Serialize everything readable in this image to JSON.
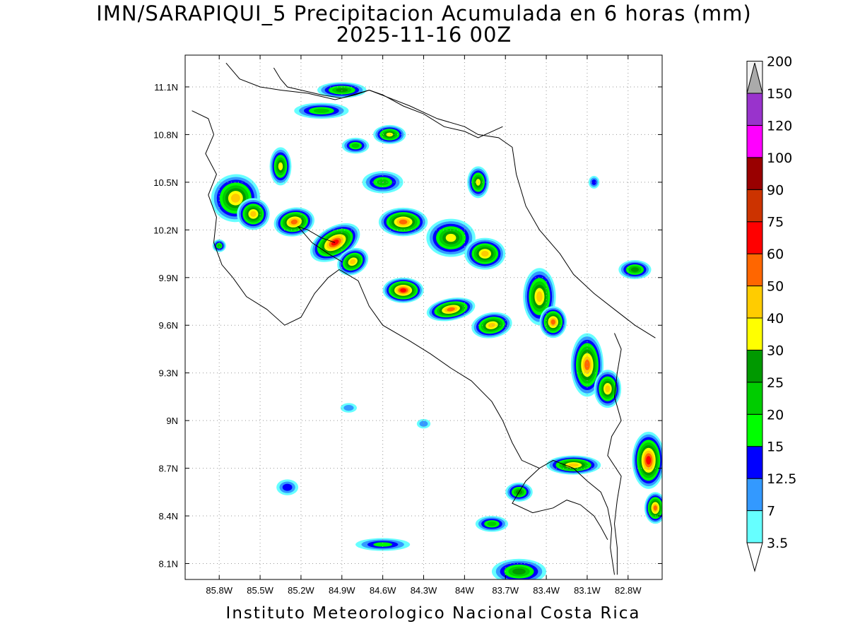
{
  "title": {
    "line1": "IMN/SARAPIQUI_5 Precipitacion Acumulada en 6 horas (mm)",
    "line2": "2025-11-16 00Z"
  },
  "credit": "Instituto Meteorologico Nacional Costa Rica",
  "map": {
    "lon_range": [
      -86.05,
      -82.55
    ],
    "lat_range": [
      8.0,
      11.3
    ],
    "lon_ticks": [
      {
        "value": -85.8,
        "label": "85.8W"
      },
      {
        "value": -85.5,
        "label": "85.5W"
      },
      {
        "value": -85.2,
        "label": "85.2W"
      },
      {
        "value": -84.9,
        "label": "84.9W"
      },
      {
        "value": -84.6,
        "label": "84.6W"
      },
      {
        "value": -84.3,
        "label": "84.3W"
      },
      {
        "value": -84.0,
        "label": "84W"
      },
      {
        "value": -83.7,
        "label": "83.7W"
      },
      {
        "value": -83.4,
        "label": "83.4W"
      },
      {
        "value": -83.1,
        "label": "83.1W"
      },
      {
        "value": -82.8,
        "label": "82.8W"
      }
    ],
    "lat_ticks": [
      {
        "value": 11.1,
        "label": "11.1N"
      },
      {
        "value": 10.8,
        "label": "10.8N"
      },
      {
        "value": 10.5,
        "label": "10.5N"
      },
      {
        "value": 10.2,
        "label": "10.2N"
      },
      {
        "value": 9.9,
        "label": "9.9N"
      },
      {
        "value": 9.6,
        "label": "9.6N"
      },
      {
        "value": 9.3,
        "label": "9.3N"
      },
      {
        "value": 9.0,
        "label": "9N"
      },
      {
        "value": 8.7,
        "label": "8.7N"
      },
      {
        "value": 8.4,
        "label": "8.4N"
      },
      {
        "value": 8.1,
        "label": "8.1N"
      }
    ],
    "grid": true,
    "coastline": [
      [
        [
          -85.4,
          11.22
        ],
        [
          -85.35,
          11.15
        ],
        [
          -85.3,
          11.1
        ],
        [
          -85.2,
          11.08
        ],
        [
          -85.05,
          11.05
        ],
        [
          -84.9,
          11.03
        ],
        [
          -84.78,
          11.06
        ],
        [
          -84.7,
          11.08
        ],
        [
          -84.55,
          11.03
        ],
        [
          -84.4,
          10.98
        ],
        [
          -84.2,
          10.9
        ],
        [
          -84.0,
          10.85
        ],
        [
          -83.9,
          10.8
        ],
        [
          -83.75,
          10.78
        ],
        [
          -83.65,
          10.72
        ],
        [
          -83.62,
          10.55
        ],
        [
          -83.55,
          10.35
        ],
        [
          -83.45,
          10.2
        ],
        [
          -83.3,
          10.05
        ],
        [
          -83.2,
          9.92
        ],
        [
          -83.05,
          9.8
        ],
        [
          -82.9,
          9.7
        ],
        [
          -82.75,
          9.6
        ],
        [
          -82.6,
          9.52
        ]
      ],
      [
        [
          -86.0,
          10.95
        ],
        [
          -85.88,
          10.9
        ],
        [
          -85.84,
          10.8
        ],
        [
          -85.9,
          10.68
        ],
        [
          -85.82,
          10.55
        ],
        [
          -85.88,
          10.42
        ],
        [
          -85.82,
          10.28
        ],
        [
          -85.84,
          10.12
        ],
        [
          -85.78,
          9.98
        ],
        [
          -85.7,
          9.9
        ],
        [
          -85.6,
          9.78
        ],
        [
          -85.45,
          9.7
        ],
        [
          -85.32,
          9.6
        ],
        [
          -85.2,
          9.65
        ],
        [
          -85.1,
          9.8
        ],
        [
          -85.0,
          9.9
        ],
        [
          -84.92,
          9.95
        ],
        [
          -84.78,
          9.88
        ],
        [
          -84.7,
          9.72
        ],
        [
          -84.6,
          9.6
        ],
        [
          -84.4,
          9.5
        ],
        [
          -84.25,
          9.42
        ],
        [
          -84.1,
          9.33
        ],
        [
          -83.95,
          9.25
        ],
        [
          -83.8,
          9.12
        ],
        [
          -83.72,
          9.0
        ],
        [
          -83.65,
          8.86
        ],
        [
          -83.58,
          8.75
        ],
        [
          -83.45,
          8.7
        ],
        [
          -83.35,
          8.75
        ],
        [
          -83.2,
          8.7
        ],
        [
          -83.1,
          8.62
        ],
        [
          -83.0,
          8.55
        ],
        [
          -82.95,
          8.45
        ],
        [
          -82.92,
          8.32
        ],
        [
          -82.93,
          8.2
        ],
        [
          -82.9,
          8.03
        ]
      ],
      [
        [
          -83.45,
          8.7
        ],
        [
          -83.55,
          8.62
        ],
        [
          -83.6,
          8.55
        ],
        [
          -83.65,
          8.48
        ],
        [
          -83.5,
          8.42
        ],
        [
          -83.35,
          8.45
        ],
        [
          -83.25,
          8.5
        ],
        [
          -83.15,
          8.47
        ],
        [
          -83.05,
          8.4
        ],
        [
          -83.0,
          8.33
        ],
        [
          -82.95,
          8.25
        ]
      ],
      [
        [
          -84.95,
          10.12
        ],
        [
          -85.05,
          10.15
        ],
        [
          -85.15,
          10.2
        ],
        [
          -85.22,
          10.22
        ],
        [
          -85.12,
          10.12
        ],
        [
          -85.0,
          10.05
        ],
        [
          -84.9,
          10.0
        ]
      ]
    ],
    "borders": [
      [
        [
          -85.75,
          11.25
        ],
        [
          -85.65,
          11.15
        ],
        [
          -85.5,
          11.1
        ],
        [
          -85.35,
          11.08
        ],
        [
          -85.15,
          11.06
        ],
        [
          -84.95,
          11.02
        ],
        [
          -84.8,
          11.05
        ],
        [
          -84.7,
          11.08
        ],
        [
          -84.6,
          11.05
        ],
        [
          -84.45,
          10.98
        ],
        [
          -84.3,
          10.93
        ],
        [
          -84.15,
          10.85
        ],
        [
          -84.0,
          10.82
        ],
        [
          -83.9,
          10.78
        ],
        [
          -83.72,
          10.85
        ]
      ],
      [
        [
          -82.9,
          9.55
        ],
        [
          -82.85,
          9.45
        ],
        [
          -82.88,
          9.3
        ],
        [
          -82.9,
          9.15
        ],
        [
          -82.85,
          9.0
        ],
        [
          -82.92,
          8.9
        ],
        [
          -82.95,
          8.78
        ],
        [
          -82.85,
          8.65
        ],
        [
          -82.88,
          8.5
        ],
        [
          -82.9,
          8.35
        ],
        [
          -82.88,
          8.2
        ],
        [
          -82.88,
          8.03
        ]
      ]
    ]
  },
  "precip_cells": [
    {
      "lon": -85.68,
      "lat": 10.4,
      "rx": 0.18,
      "ry": 0.15,
      "max": 45,
      "rot": -20
    },
    {
      "lon": -85.55,
      "lat": 10.3,
      "rx": 0.12,
      "ry": 0.1,
      "max": 40,
      "rot": 0
    },
    {
      "lon": -85.25,
      "lat": 10.25,
      "rx": 0.15,
      "ry": 0.09,
      "max": 55,
      "rot": -10
    },
    {
      "lon": -84.95,
      "lat": 10.12,
      "rx": 0.2,
      "ry": 0.1,
      "max": 60,
      "rot": -30
    },
    {
      "lon": -84.82,
      "lat": 10.0,
      "rx": 0.12,
      "ry": 0.08,
      "max": 45,
      "rot": -30
    },
    {
      "lon": -84.45,
      "lat": 10.25,
      "rx": 0.18,
      "ry": 0.09,
      "max": 50,
      "rot": 0
    },
    {
      "lon": -84.1,
      "lat": 10.15,
      "rx": 0.18,
      "ry": 0.12,
      "max": 35,
      "rot": 0
    },
    {
      "lon": -83.85,
      "lat": 10.05,
      "rx": 0.15,
      "ry": 0.1,
      "max": 45,
      "rot": 0
    },
    {
      "lon": -84.45,
      "lat": 9.82,
      "rx": 0.15,
      "ry": 0.08,
      "max": 60,
      "rot": 0
    },
    {
      "lon": -84.1,
      "lat": 9.7,
      "rx": 0.18,
      "ry": 0.07,
      "max": 55,
      "rot": -10
    },
    {
      "lon": -83.8,
      "lat": 9.6,
      "rx": 0.15,
      "ry": 0.08,
      "max": 40,
      "rot": -10
    },
    {
      "lon": -83.45,
      "lat": 9.78,
      "rx": 0.12,
      "ry": 0.18,
      "max": 45,
      "rot": 0
    },
    {
      "lon": -83.35,
      "lat": 9.62,
      "rx": 0.1,
      "ry": 0.1,
      "max": 50,
      "rot": 0
    },
    {
      "lon": -83.1,
      "lat": 9.35,
      "rx": 0.12,
      "ry": 0.2,
      "max": 50,
      "rot": 0
    },
    {
      "lon": -82.95,
      "lat": 9.2,
      "rx": 0.1,
      "ry": 0.12,
      "max": 45,
      "rot": 0
    },
    {
      "lon": -82.65,
      "lat": 8.75,
      "rx": 0.12,
      "ry": 0.18,
      "max": 60,
      "rot": 0
    },
    {
      "lon": -82.6,
      "lat": 8.45,
      "rx": 0.08,
      "ry": 0.1,
      "max": 50,
      "rot": 0
    },
    {
      "lon": -83.2,
      "lat": 8.72,
      "rx": 0.2,
      "ry": 0.06,
      "max": 40,
      "rot": 0
    },
    {
      "lon": -83.9,
      "lat": 10.5,
      "rx": 0.08,
      "ry": 0.1,
      "max": 30,
      "rot": 0
    },
    {
      "lon": -84.9,
      "lat": 11.08,
      "rx": 0.18,
      "ry": 0.05,
      "max": 25,
      "rot": 0
    },
    {
      "lon": -85.05,
      "lat": 10.95,
      "rx": 0.2,
      "ry": 0.05,
      "max": 20,
      "rot": 0
    },
    {
      "lon": -84.55,
      "lat": 10.8,
      "rx": 0.12,
      "ry": 0.06,
      "max": 30,
      "rot": 0
    },
    {
      "lon": -84.8,
      "lat": 10.73,
      "rx": 0.1,
      "ry": 0.05,
      "max": 20,
      "rot": 0
    },
    {
      "lon": -85.35,
      "lat": 10.6,
      "rx": 0.08,
      "ry": 0.12,
      "max": 30,
      "rot": 0
    },
    {
      "lon": -84.6,
      "lat": 10.5,
      "rx": 0.15,
      "ry": 0.07,
      "max": 20,
      "rot": 0
    },
    {
      "lon": -83.05,
      "lat": 10.5,
      "rx": 0.04,
      "ry": 0.04,
      "max": 14,
      "rot": 0
    },
    {
      "lon": -82.75,
      "lat": 9.95,
      "rx": 0.12,
      "ry": 0.06,
      "max": 25,
      "rot": 0
    },
    {
      "lon": -83.6,
      "lat": 8.55,
      "rx": 0.1,
      "ry": 0.06,
      "max": 25,
      "rot": 0
    },
    {
      "lon": -83.8,
      "lat": 8.35,
      "rx": 0.12,
      "ry": 0.05,
      "max": 22,
      "rot": 0
    },
    {
      "lon": -83.6,
      "lat": 8.05,
      "rx": 0.2,
      "ry": 0.08,
      "max": 25,
      "rot": 0
    },
    {
      "lon": -84.6,
      "lat": 8.22,
      "rx": 0.2,
      "ry": 0.04,
      "max": 18,
      "rot": 0
    },
    {
      "lon": -85.3,
      "lat": 8.58,
      "rx": 0.08,
      "ry": 0.05,
      "max": 14,
      "rot": 0
    },
    {
      "lon": -84.85,
      "lat": 9.08,
      "rx": 0.06,
      "ry": 0.03,
      "max": 8,
      "rot": 0
    },
    {
      "lon": -84.3,
      "lat": 8.98,
      "rx": 0.05,
      "ry": 0.03,
      "max": 8,
      "rot": 0
    },
    {
      "lon": -85.8,
      "lat": 10.1,
      "rx": 0.05,
      "ry": 0.04,
      "max": 20,
      "rot": 0
    }
  ],
  "colorbar": {
    "labels": [
      "3.5",
      "7",
      "12.5",
      "15",
      "20",
      "25",
      "30",
      "40",
      "50",
      "60",
      "75",
      "90",
      "100",
      "120",
      "150",
      "200"
    ],
    "colors": [
      "#66ffff",
      "#3399ff",
      "#0000ff",
      "#00ff00",
      "#00cc00",
      "#009900",
      "#ffff00",
      "#ffcc00",
      "#ff6600",
      "#ff0000",
      "#cc3300",
      "#990000",
      "#ff00ff",
      "#9933cc",
      "#f2f2f2",
      "#aaaaaa"
    ]
  }
}
